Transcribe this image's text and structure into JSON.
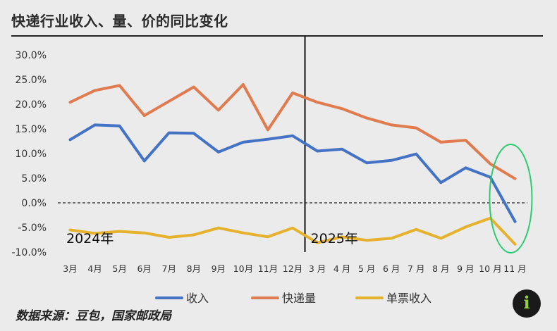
{
  "title": "快递行业收入、量、价的同比变化",
  "source": "数据来源：豆包，国家邮政局",
  "logo_text": "i",
  "chart_data": {
    "type": "line",
    "categories": [
      "3月",
      "4月",
      "5月",
      "6月",
      "7月",
      "8月",
      "9月",
      "10月",
      "11月",
      "12月",
      "3 月",
      "4 月",
      "5 月",
      "6 月",
      "7 月",
      "8 月",
      "9 月",
      "10 月",
      "11 月"
    ],
    "ylim": [
      -10,
      30
    ],
    "yticks": [
      30,
      25,
      20,
      15,
      10,
      5,
      0,
      -5,
      -10
    ],
    "ytick_labels": [
      "30.0%",
      "25.0%",
      "20.0%",
      "15.0%",
      "10.0%",
      "5.0%",
      "0.0%",
      "-5.0%",
      "-10.0%"
    ],
    "series": [
      {
        "name": "收入",
        "color": "#4472c4",
        "values": [
          12.8,
          15.8,
          15.6,
          8.5,
          14.2,
          14.1,
          10.3,
          12.3,
          12.9,
          13.6,
          10.5,
          10.9,
          8.1,
          8.6,
          9.9,
          4.1,
          7.1,
          5.2,
          -3.8
        ]
      },
      {
        "name": "快递量",
        "color": "#e07b4f",
        "values": [
          20.4,
          22.8,
          23.8,
          17.7,
          20.6,
          23.5,
          18.8,
          24.0,
          14.8,
          22.3,
          20.4,
          19.1,
          17.2,
          15.8,
          15.2,
          12.3,
          12.7,
          7.9,
          4.9
        ]
      },
      {
        "name": "单票收入",
        "color": "#e6b22e",
        "values": [
          -5.5,
          -6.2,
          -5.8,
          -6.1,
          -7.0,
          -6.5,
          -5.1,
          -6.1,
          -6.9,
          -5.1,
          -8.1,
          -6.9,
          -7.6,
          -7.2,
          -5.4,
          -7.2,
          -4.9,
          -3.1,
          -8.4
        ]
      }
    ],
    "period_labels": [
      "2024年",
      "2025年"
    ],
    "divider_after_index": 9,
    "zero_line": "dashed",
    "highlight": "ellipse around last point",
    "highlight_color": "#2ecc71",
    "legend_position": "bottom"
  }
}
